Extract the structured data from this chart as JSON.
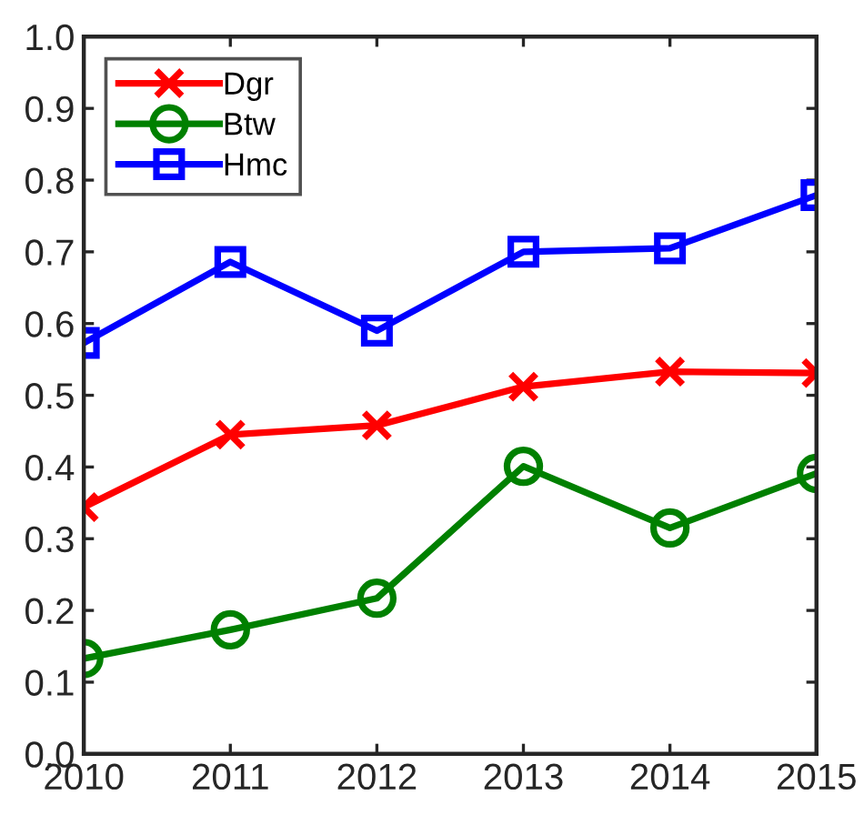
{
  "chart_data": {
    "type": "line",
    "x": [
      2010,
      2011,
      2012,
      2013,
      2014,
      2015
    ],
    "series": [
      {
        "name": "Dgr",
        "color": "#ff0000",
        "marker": "cross",
        "values": [
          0.344,
          0.445,
          0.458,
          0.512,
          0.533,
          0.531
        ]
      },
      {
        "name": "Btw",
        "color": "#008000",
        "marker": "circle",
        "values": [
          0.133,
          0.173,
          0.217,
          0.401,
          0.315,
          0.391
        ]
      },
      {
        "name": "Hmc",
        "color": "#0000ff",
        "marker": "square",
        "values": [
          0.573,
          0.686,
          0.59,
          0.7,
          0.705,
          0.779
        ]
      }
    ],
    "xlim": [
      2010,
      2015
    ],
    "xticks": [
      2010,
      2011,
      2012,
      2013,
      2014,
      2015
    ],
    "ylim": [
      0,
      1
    ],
    "yticks": [
      {
        "value": 0,
        "label": "0.0"
      },
      0.1,
      0.2,
      0.3,
      0.4,
      0.5,
      0.6,
      0.7,
      0.8,
      0.9,
      {
        "value": 1,
        "label": "1.0"
      }
    ],
    "grid": false,
    "legend": "top left",
    "line_style": "solid"
  }
}
